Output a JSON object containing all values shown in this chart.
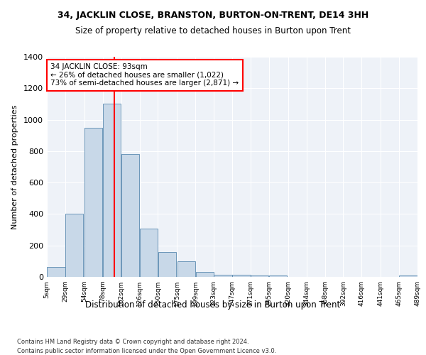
{
  "title1": "34, JACKLIN CLOSE, BRANSTON, BURTON-ON-TRENT, DE14 3HH",
  "title2": "Size of property relative to detached houses in Burton upon Trent",
  "xlabel": "Distribution of detached houses by size in Burton upon Trent",
  "ylabel": "Number of detached properties",
  "footer1": "Contains HM Land Registry data © Crown copyright and database right 2024.",
  "footer2": "Contains public sector information licensed under the Open Government Licence v3.0.",
  "annotation_line1": "34 JACKLIN CLOSE: 93sqm",
  "annotation_line2": "← 26% of detached houses are smaller (1,022)",
  "annotation_line3": "73% of semi-detached houses are larger (2,871) →",
  "property_size_sqm": 93,
  "bin_edges": [
    5,
    29,
    54,
    78,
    102,
    126,
    150,
    175,
    199,
    223,
    247,
    271,
    295,
    320,
    344,
    368,
    392,
    416,
    441,
    465,
    489
  ],
  "bar_heights": [
    65,
    400,
    950,
    1100,
    780,
    305,
    160,
    100,
    30,
    15,
    12,
    10,
    8,
    0,
    0,
    0,
    0,
    0,
    0,
    10
  ],
  "bar_color": "#c8d8e8",
  "bar_edge_color": "#5a8ab0",
  "red_line_x": 93,
  "ylim": [
    0,
    1400
  ],
  "yticks": [
    0,
    200,
    400,
    600,
    800,
    1000,
    1200,
    1400
  ],
  "bg_color": "#eef2f8",
  "plot_bg_color": "#eef2f8",
  "annotation_box_color": "white",
  "annotation_box_edge": "red",
  "tick_labels": [
    "5sqm",
    "29sqm",
    "54sqm",
    "78sqm",
    "102sqm",
    "126sqm",
    "150sqm",
    "175sqm",
    "199sqm",
    "223sqm",
    "247sqm",
    "271sqm",
    "295sqm",
    "320sqm",
    "344sqm",
    "368sqm",
    "392sqm",
    "416sqm",
    "441sqm",
    "465sqm",
    "489sqm"
  ]
}
